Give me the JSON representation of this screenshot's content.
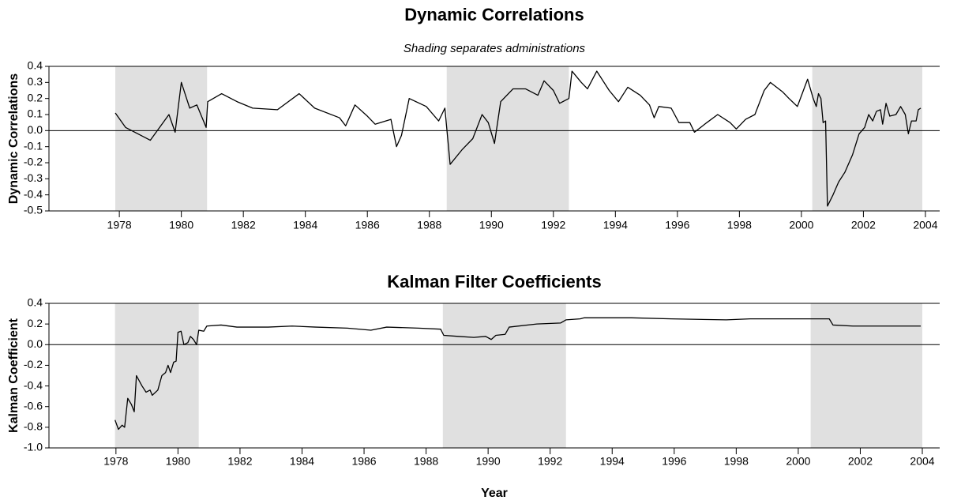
{
  "chart_data": [
    {
      "type": "line",
      "title": "Dynamic Correlations",
      "subtitle": "Shading separates administrations",
      "ylabel": "Dynamic Correlations",
      "color": "#000000",
      "shading_color": "#e0e0e0",
      "shading": [
        [
          1977.87,
          1980.83
        ],
        [
          1988.56,
          1992.5
        ],
        [
          2000.35,
          2003.9
        ]
      ],
      "hline": 0,
      "xlim": [
        1975.73,
        2004.46
      ],
      "xticks": [
        1978,
        1980,
        1982,
        1984,
        1986,
        1988,
        1990,
        1992,
        1994,
        1996,
        1998,
        2000,
        2002,
        2004
      ],
      "ylim": [
        -0.5,
        0.4
      ],
      "yticks": [
        -0.5,
        -0.4,
        -0.3,
        -0.2,
        -0.1,
        {
          "value": 0,
          "label": "0.0"
        },
        0.1,
        0.2,
        0.3,
        0.4
      ],
      "x": [
        1977.87,
        1978.2,
        1979.0,
        1979.6,
        1979.8,
        1980.0,
        1980.27,
        1980.5,
        1980.8,
        1980.85,
        1981.3,
        1981.8,
        1982.3,
        1983.1,
        1983.8,
        1984.3,
        1985.1,
        1985.3,
        1985.6,
        1986.0,
        1986.25,
        1986.76,
        1986.94,
        1987.1,
        1987.35,
        1987.9,
        1988.3,
        1988.4,
        1988.5,
        1988.67,
        1989.05,
        1989.4,
        1989.7,
        1989.9,
        1990.1,
        1990.3,
        1990.7,
        1991.1,
        1991.5,
        1991.7,
        1992.0,
        1992.2,
        1992.5,
        1992.6,
        1992.9,
        1993.1,
        1993.4,
        1993.8,
        1994.1,
        1994.4,
        1994.8,
        1995.1,
        1995.25,
        1995.4,
        1995.8,
        1996.05,
        1996.4,
        1996.55,
        1996.95,
        1997.3,
        1997.7,
        1997.9,
        1998.2,
        1998.5,
        1998.8,
        1999.0,
        1999.4,
        1999.6,
        1999.87,
        2000.2,
        2000.38,
        2000.48,
        2000.55,
        2000.63,
        2000.7,
        2000.78,
        2000.84,
        2001.02,
        2001.2,
        2001.4,
        2001.65,
        2001.86,
        2002.04,
        2002.17,
        2002.3,
        2002.42,
        2002.55,
        2002.62,
        2002.73,
        2002.85,
        2003.05,
        2003.2,
        2003.35,
        2003.45,
        2003.55,
        2003.7,
        2003.77,
        2003.85
      ],
      "values": [
        0.11,
        0.02,
        -0.06,
        0.1,
        -0.01,
        0.3,
        0.14,
        0.16,
        0.02,
        0.18,
        0.23,
        0.18,
        0.14,
        0.13,
        0.23,
        0.14,
        0.08,
        0.03,
        0.16,
        0.09,
        0.04,
        0.07,
        -0.1,
        -0.03,
        0.2,
        0.15,
        0.06,
        0.1,
        0.14,
        -0.21,
        -0.12,
        -0.05,
        0.1,
        0.05,
        -0.08,
        0.18,
        0.26,
        0.26,
        0.22,
        0.31,
        0.25,
        0.17,
        0.2,
        0.37,
        0.3,
        0.26,
        0.37,
        0.25,
        0.18,
        0.27,
        0.22,
        0.16,
        0.08,
        0.15,
        0.14,
        0.05,
        0.05,
        -0.01,
        0.05,
        0.1,
        0.05,
        0.01,
        0.07,
        0.1,
        0.25,
        0.3,
        0.24,
        0.2,
        0.15,
        0.32,
        0.2,
        0.15,
        0.23,
        0.2,
        0.05,
        0.06,
        -0.47,
        -0.4,
        -0.32,
        -0.26,
        -0.15,
        -0.02,
        0.02,
        0.1,
        0.06,
        0.12,
        0.13,
        0.04,
        0.17,
        0.09,
        0.1,
        0.15,
        0.1,
        -0.02,
        0.06,
        0.06,
        0.13,
        0.14
      ]
    },
    {
      "type": "line",
      "title": "Kalman Filter Coefficients",
      "ylabel": "Kalman Coefficient",
      "xlabel": "Year",
      "color": "#000000",
      "shading_color": "#e0e0e0",
      "shading": [
        [
          1977.97,
          1980.67
        ],
        [
          1988.54,
          1992.51
        ],
        [
          2000.4,
          2004.0
        ]
      ],
      "hline": 0,
      "xlim": [
        1975.84,
        2004.56
      ],
      "xticks": [
        1978,
        1980,
        1982,
        1984,
        1986,
        1988,
        1990,
        1992,
        1994,
        1996,
        1998,
        2000,
        2002,
        2004
      ],
      "ylim": [
        -1,
        0.4
      ],
      "yticks": [
        {
          "value": -1,
          "label": "-1.0"
        },
        -0.8,
        -0.6,
        -0.4,
        -0.2,
        {
          "value": 0,
          "label": "0.0"
        },
        0.2,
        0.4
      ],
      "x": [
        1977.97,
        1978.08,
        1978.2,
        1978.28,
        1978.38,
        1978.5,
        1978.59,
        1978.66,
        1978.84,
        1978.97,
        1979.1,
        1979.17,
        1979.35,
        1979.48,
        1979.6,
        1979.68,
        1979.76,
        1979.86,
        1979.94,
        1980.0,
        1980.1,
        1980.19,
        1980.32,
        1980.4,
        1980.5,
        1980.6,
        1980.67,
        1980.83,
        1980.93,
        1981.39,
        1981.9,
        1982.91,
        1983.68,
        1984.44,
        1985.46,
        1986.22,
        1986.73,
        1987.75,
        1988.47,
        1988.57,
        1989.03,
        1989.54,
        1989.92,
        1990.1,
        1990.25,
        1990.55,
        1990.68,
        1991.57,
        1992.34,
        1992.51,
        1992.97,
        1993.1,
        1994.63,
        1995.9,
        1997.68,
        1998.45,
        1999.72,
        2000.49,
        2001.0,
        2001.12,
        2001.76,
        2002.78,
        2003.95
      ],
      "values": [
        -0.73,
        -0.82,
        -0.78,
        -0.8,
        -0.52,
        -0.58,
        -0.65,
        -0.3,
        -0.4,
        -0.46,
        -0.44,
        -0.49,
        -0.44,
        -0.3,
        -0.27,
        -0.2,
        -0.27,
        -0.17,
        -0.16,
        0.12,
        0.13,
        0.0,
        0.02,
        0.08,
        0.05,
        0.0,
        0.14,
        0.13,
        0.18,
        0.19,
        0.17,
        0.17,
        0.18,
        0.17,
        0.16,
        0.14,
        0.17,
        0.16,
        0.15,
        0.09,
        0.08,
        0.07,
        0.08,
        0.05,
        0.09,
        0.1,
        0.17,
        0.2,
        0.21,
        0.24,
        0.25,
        0.26,
        0.26,
        0.25,
        0.24,
        0.25,
        0.25,
        0.25,
        0.25,
        0.19,
        0.18,
        0.18,
        0.18
      ]
    }
  ]
}
